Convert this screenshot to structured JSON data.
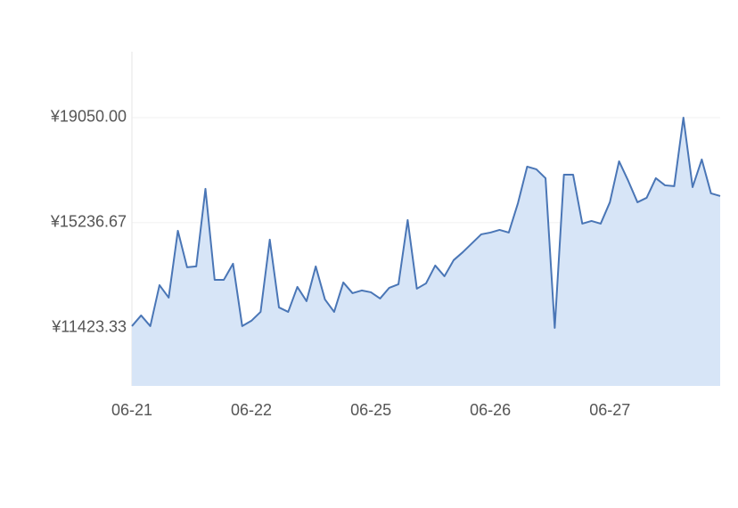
{
  "chart_data": {
    "type": "area",
    "categories": [
      "06-21",
      null,
      null,
      null,
      null,
      null,
      null,
      null,
      null,
      null,
      null,
      null,
      null,
      "06-22",
      null,
      null,
      null,
      null,
      null,
      null,
      null,
      null,
      null,
      null,
      null,
      null,
      "06-25",
      null,
      null,
      null,
      null,
      null,
      null,
      null,
      null,
      null,
      null,
      null,
      null,
      "06-26",
      null,
      null,
      null,
      null,
      null,
      null,
      null,
      null,
      null,
      null,
      null,
      null,
      "06-27",
      null,
      null,
      null,
      null,
      null,
      null,
      null,
      null,
      null,
      null,
      null,
      null
    ],
    "values": [
      11488,
      11876,
      11488,
      12974,
      12522,
      14946,
      13621,
      13653,
      16465,
      13168,
      13168,
      13750,
      11488,
      11682,
      12005,
      14623,
      12166,
      12005,
      12910,
      12393,
      13653,
      12457,
      12005,
      13071,
      12684,
      12781,
      12716,
      12490,
      12878,
      13007,
      15334,
      12845,
      13039,
      13685,
      13297,
      13879,
      14170,
      14493,
      14816,
      14881,
      14978,
      14881,
      15948,
      17272,
      17175,
      16852,
      11423.33,
      16981,
      16981,
      15204,
      15302,
      15204,
      15980,
      17466,
      16755,
      15980,
      16141,
      16852,
      16594,
      16562,
      19050,
      16529,
      17531,
      16303,
      16206
    ],
    "color": "#4a76b6",
    "fill_color": "#d7e5f7",
    "ylim": [
      9320,
      21440
    ],
    "yticks": [
      {
        "value": 11423.33,
        "label": "¥11423.33"
      },
      {
        "value": 15236.67,
        "label": "¥15236.67"
      },
      {
        "value": 19050,
        "label": "¥19050.00"
      }
    ],
    "grid": true
  }
}
